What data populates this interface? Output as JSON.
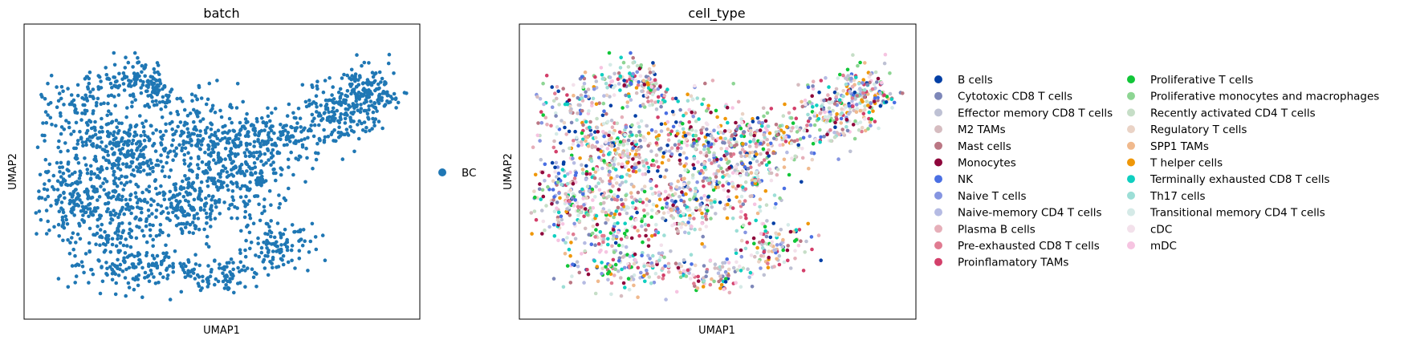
{
  "chart_data": [
    {
      "type": "scatter",
      "title": "batch",
      "xlabel": "UMAP1",
      "ylabel": "UMAP2",
      "grid": false,
      "ticks": false,
      "legend_position": "right",
      "series": [
        {
          "name": "BC",
          "color": "#1f77b4"
        }
      ]
    },
    {
      "type": "scatter",
      "title": "cell_type",
      "xlabel": "UMAP1",
      "ylabel": "UMAP2",
      "grid": false,
      "ticks": false,
      "legend_position": "right (two columns)",
      "series": [
        {
          "name": "B cells",
          "color": "#023fa5"
        },
        {
          "name": "Cytotoxic CD8 T cells",
          "color": "#7d87b9"
        },
        {
          "name": "Effector memory CD8 T cells",
          "color": "#bec1d4"
        },
        {
          "name": "M2 TAMs",
          "color": "#d6bcc0"
        },
        {
          "name": "Mast cells",
          "color": "#bb7784"
        },
        {
          "name": "Monocytes",
          "color": "#8e063b"
        },
        {
          "name": "NK",
          "color": "#4a6fe3"
        },
        {
          "name": "Naive T cells",
          "color": "#8595e1"
        },
        {
          "name": "Naive-memory CD4 T cells",
          "color": "#b5bbe3"
        },
        {
          "name": "Plasma B cells",
          "color": "#e6afb9"
        },
        {
          "name": "Pre-exhausted CD8 T cells",
          "color": "#e07b91"
        },
        {
          "name": "Proinflamatory TAMs",
          "color": "#d33f6a"
        },
        {
          "name": "Proliferative T cells",
          "color": "#11c638"
        },
        {
          "name": "Proliferative monocytes and macrophages",
          "color": "#8dd593"
        },
        {
          "name": "Recently activated CD4 T cells",
          "color": "#c6dec7"
        },
        {
          "name": "Regulatory T cells",
          "color": "#ead3c6"
        },
        {
          "name": "SPP1 TAMs",
          "color": "#f0b98d"
        },
        {
          "name": "T helper cells",
          "color": "#ef9708"
        },
        {
          "name": "Terminally exhausted CD8 T cells",
          "color": "#0fcfc0"
        },
        {
          "name": "Th17 cells",
          "color": "#9cded6"
        },
        {
          "name": "Transitional memory CD4 T cells",
          "color": "#d5eae7"
        },
        {
          "name": "cDC",
          "color": "#f3e1eb"
        },
        {
          "name": "mDC",
          "color": "#f6c4e1"
        }
      ]
    }
  ]
}
